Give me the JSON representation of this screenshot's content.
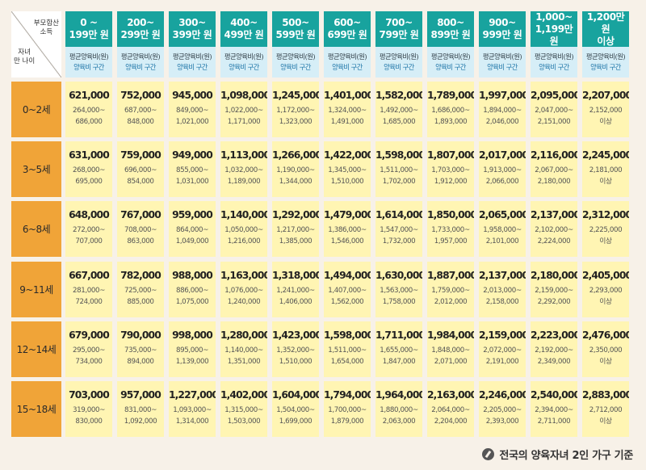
{
  "corner": {
    "top_label_line1": "부모합산",
    "top_label_line2": "소득",
    "bottom_label_line1": "자녀",
    "bottom_label_line2": "만 나이"
  },
  "sub_header": {
    "line1": "평균양육비(원)",
    "line2": "양육비 구간"
  },
  "columns": [
    {
      "line1": "0 ~",
      "line2": "199만 원"
    },
    {
      "line1": "200~",
      "line2": "299만 원"
    },
    {
      "line1": "300~",
      "line2": "399만 원"
    },
    {
      "line1": "400~",
      "line2": "499만 원"
    },
    {
      "line1": "500~",
      "line2": "599만 원"
    },
    {
      "line1": "600~",
      "line2": "699만 원"
    },
    {
      "line1": "700~",
      "line2": "799만 원"
    },
    {
      "line1": "800~",
      "line2": "899만 원"
    },
    {
      "line1": "900~",
      "line2": "999만 원"
    },
    {
      "line1": "1,000~",
      "line2": "1,199만 원"
    },
    {
      "line1": "1,200만 원",
      "line2": "이상"
    }
  ],
  "rows": [
    {
      "age": "0~2세",
      "cells": [
        {
          "avg": "621,000",
          "r1": "264,000~",
          "r2": "686,000"
        },
        {
          "avg": "752,000",
          "r1": "687,000~",
          "r2": "848,000"
        },
        {
          "avg": "945,000",
          "r1": "849,000~",
          "r2": "1,021,000"
        },
        {
          "avg": "1,098,000",
          "r1": "1,022,000~",
          "r2": "1,171,000"
        },
        {
          "avg": "1,245,000",
          "r1": "1,172,000~",
          "r2": "1,323,000"
        },
        {
          "avg": "1,401,000",
          "r1": "1,324,000~",
          "r2": "1,491,000"
        },
        {
          "avg": "1,582,000",
          "r1": "1,492,000~",
          "r2": "1,685,000"
        },
        {
          "avg": "1,789,000",
          "r1": "1,686,000~",
          "r2": "1,893,000"
        },
        {
          "avg": "1,997,000",
          "r1": "1,894,000~",
          "r2": "2,046,000"
        },
        {
          "avg": "2,095,000",
          "r1": "2,047,000~",
          "r2": "2,151,000"
        },
        {
          "avg": "2,207,000",
          "r1": "2,152,000",
          "r2": "이상"
        }
      ]
    },
    {
      "age": "3~5세",
      "cells": [
        {
          "avg": "631,000",
          "r1": "268,000~",
          "r2": "695,000"
        },
        {
          "avg": "759,000",
          "r1": "696,000~",
          "r2": "854,000"
        },
        {
          "avg": "949,000",
          "r1": "855,000~",
          "r2": "1,031,000"
        },
        {
          "avg": "1,113,000",
          "r1": "1,032,000~",
          "r2": "1,189,000"
        },
        {
          "avg": "1,266,000",
          "r1": "1,190,000~",
          "r2": "1,344,000"
        },
        {
          "avg": "1,422,000",
          "r1": "1,345,000~",
          "r2": "1,510,000"
        },
        {
          "avg": "1,598,000",
          "r1": "1,511,000~",
          "r2": "1,702,000"
        },
        {
          "avg": "1,807,000",
          "r1": "1,703,000~",
          "r2": "1,912,000"
        },
        {
          "avg": "2,017,000",
          "r1": "1,913,000~",
          "r2": "2,066,000"
        },
        {
          "avg": "2,116,000",
          "r1": "2,067,000~",
          "r2": "2,180,000"
        },
        {
          "avg": "2,245,000",
          "r1": "2,181,000",
          "r2": "이상"
        }
      ]
    },
    {
      "age": "6~8세",
      "cells": [
        {
          "avg": "648,000",
          "r1": "272,000~",
          "r2": "707,000"
        },
        {
          "avg": "767,000",
          "r1": "708,000~",
          "r2": "863,000"
        },
        {
          "avg": "959,000",
          "r1": "864,000~",
          "r2": "1,049,000"
        },
        {
          "avg": "1,140,000",
          "r1": "1,050,000~",
          "r2": "1,216,000"
        },
        {
          "avg": "1,292,000",
          "r1": "1,217,000~",
          "r2": "1,385,000"
        },
        {
          "avg": "1,479,000",
          "r1": "1,386,000~",
          "r2": "1,546,000"
        },
        {
          "avg": "1,614,000",
          "r1": "1,547,000~",
          "r2": "1,732,000"
        },
        {
          "avg": "1,850,000",
          "r1": "1,733,000~",
          "r2": "1,957,000"
        },
        {
          "avg": "2,065,000",
          "r1": "1,958,000~",
          "r2": "2,101,000"
        },
        {
          "avg": "2,137,000",
          "r1": "2,102,000~",
          "r2": "2,224,000"
        },
        {
          "avg": "2,312,000",
          "r1": "2,225,000",
          "r2": "이상"
        }
      ]
    },
    {
      "age": "9~11세",
      "cells": [
        {
          "avg": "667,000",
          "r1": "281,000~",
          "r2": "724,000"
        },
        {
          "avg": "782,000",
          "r1": "725,000~",
          "r2": "885,000"
        },
        {
          "avg": "988,000",
          "r1": "886,000~",
          "r2": "1,075,000"
        },
        {
          "avg": "1,163,000",
          "r1": "1,076,000~",
          "r2": "1,240,000"
        },
        {
          "avg": "1,318,000",
          "r1": "1,241,000~",
          "r2": "1,406,000"
        },
        {
          "avg": "1,494,000",
          "r1": "1,407,000~",
          "r2": "1,562,000"
        },
        {
          "avg": "1,630,000",
          "r1": "1,563,000~",
          "r2": "1,758,000"
        },
        {
          "avg": "1,887,000",
          "r1": "1,759,000~",
          "r2": "2,012,000"
        },
        {
          "avg": "2,137,000",
          "r1": "2,013,000~",
          "r2": "2,158,000"
        },
        {
          "avg": "2,180,000",
          "r1": "2,159,000~",
          "r2": "2,292,000"
        },
        {
          "avg": "2,405,000",
          "r1": "2,293,000",
          "r2": "이상"
        }
      ]
    },
    {
      "age": "12~14세",
      "cells": [
        {
          "avg": "679,000",
          "r1": "295,000~",
          "r2": "734,000"
        },
        {
          "avg": "790,000",
          "r1": "735,000~",
          "r2": "894,000"
        },
        {
          "avg": "998,000",
          "r1": "895,000~",
          "r2": "1,139,000"
        },
        {
          "avg": "1,280,000",
          "r1": "1,140,000~",
          "r2": "1,351,000"
        },
        {
          "avg": "1,423,000",
          "r1": "1,352,000~",
          "r2": "1,510,000"
        },
        {
          "avg": "1,598,000",
          "r1": "1,511,000~",
          "r2": "1,654,000"
        },
        {
          "avg": "1,711,000",
          "r1": "1,655,000~",
          "r2": "1,847,000"
        },
        {
          "avg": "1,984,000",
          "r1": "1,848,000~",
          "r2": "2,071,000"
        },
        {
          "avg": "2,159,000",
          "r1": "2,072,000~",
          "r2": "2,191,000"
        },
        {
          "avg": "2,223,000",
          "r1": "2,192,000~",
          "r2": "2,349,000"
        },
        {
          "avg": "2,476,000",
          "r1": "2,350,000",
          "r2": "이상"
        }
      ]
    },
    {
      "age": "15~18세",
      "cells": [
        {
          "avg": "703,000",
          "r1": "319,000~",
          "r2": "830,000"
        },
        {
          "avg": "957,000",
          "r1": "831,000~",
          "r2": "1,092,000"
        },
        {
          "avg": "1,227,000",
          "r1": "1,093,000~",
          "r2": "1,314,000"
        },
        {
          "avg": "1,402,000",
          "r1": "1,315,000~",
          "r2": "1,503,000"
        },
        {
          "avg": "1,604,000",
          "r1": "1,504,000~",
          "r2": "1,699,000"
        },
        {
          "avg": "1,794,000",
          "r1": "1,700,000~",
          "r2": "1,879,000"
        },
        {
          "avg": "1,964,000",
          "r1": "1,880,000~",
          "r2": "2,063,000"
        },
        {
          "avg": "2,163,000",
          "r1": "2,064,000~",
          "r2": "2,204,000"
        },
        {
          "avg": "2,246,000",
          "r1": "2,205,000~",
          "r2": "2,393,000"
        },
        {
          "avg": "2,540,000",
          "r1": "2,394,000~",
          "r2": "2,711,000"
        },
        {
          "avg": "2,883,000",
          "r1": "2,712,000",
          "r2": "이상"
        }
      ]
    }
  ],
  "footnote": {
    "icon": "pen-icon",
    "text": "전국의 양육자녀 2인 가구 기준"
  },
  "colors": {
    "header_teal": "#18a39e",
    "subheader_blue": "#d6eef7",
    "age_orange": "#f0a438",
    "cell_yellow": "#fff5b3",
    "background": "#f7f1e8"
  }
}
